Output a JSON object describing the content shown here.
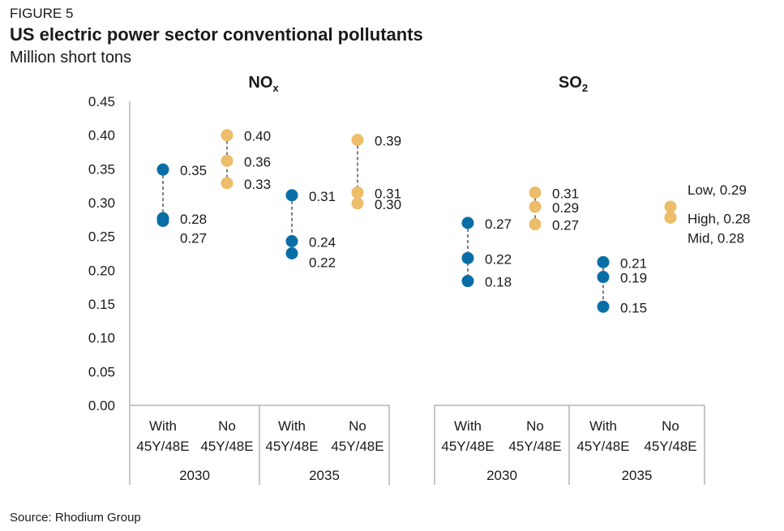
{
  "header": {
    "figure_label": "FIGURE 5",
    "title": "US electric power sector conventional pollutants",
    "subtitle": "Million short tons"
  },
  "footer": {
    "source": "Source: Rhodium Group"
  },
  "colors": {
    "with": "#0a6ea6",
    "no": "#ecbd6a",
    "axis": "#b3b3b3",
    "connector": "#555555"
  },
  "chart_data": [
    {
      "type": "scatter",
      "title": "NO",
      "title_subscript": "x",
      "ylim": [
        0,
        0.45
      ],
      "yticks": [
        "0.00",
        "0.05",
        "0.10",
        "0.15",
        "0.20",
        "0.25",
        "0.30",
        "0.35",
        "0.40",
        "0.45"
      ],
      "categories": [
        {
          "line1": "With",
          "line2": "45Y/48E",
          "year": "2030",
          "scenario": "with",
          "points": [
            {
              "value": 0.349,
              "label": "0.35"
            },
            {
              "value": 0.277,
              "label": "0.28"
            },
            {
              "value": 0.273,
              "label": "0.27"
            }
          ]
        },
        {
          "line1": "No",
          "line2": "45Y/48E",
          "year": "2030",
          "scenario": "no",
          "points": [
            {
              "value": 0.4,
              "label": "0.40"
            },
            {
              "value": 0.362,
              "label": "0.36"
            },
            {
              "value": 0.329,
              "label": "0.33"
            }
          ]
        },
        {
          "line1": "With",
          "line2": "45Y/48E",
          "year": "2035",
          "scenario": "with",
          "points": [
            {
              "value": 0.311,
              "label": "0.31"
            },
            {
              "value": 0.243,
              "label": "0.24"
            },
            {
              "value": 0.225,
              "label": "0.22"
            }
          ]
        },
        {
          "line1": "No",
          "line2": "45Y/48E",
          "year": "2035",
          "scenario": "no",
          "points": [
            {
              "value": 0.393,
              "label": "0.39"
            },
            {
              "value": 0.315,
              "label": "0.31"
            },
            {
              "value": 0.299,
              "label": "0.30"
            }
          ]
        }
      ],
      "years": [
        "2030",
        "2035"
      ]
    },
    {
      "type": "scatter",
      "title": "SO",
      "title_subscript": "2",
      "ylim": [
        0,
        0.45
      ],
      "categories": [
        {
          "line1": "With",
          "line2": "45Y/48E",
          "year": "2030",
          "scenario": "with",
          "points": [
            {
              "value": 0.27,
              "label": "0.27"
            },
            {
              "value": 0.218,
              "label": "0.22"
            },
            {
              "value": 0.184,
              "label": "0.18"
            }
          ]
        },
        {
          "line1": "No",
          "line2": "45Y/48E",
          "year": "2030",
          "scenario": "no",
          "points": [
            {
              "value": 0.315,
              "label": "0.31"
            },
            {
              "value": 0.294,
              "label": "0.29"
            },
            {
              "value": 0.268,
              "label": "0.27"
            }
          ]
        },
        {
          "line1": "With",
          "line2": "45Y/48E",
          "year": "2035",
          "scenario": "with",
          "points": [
            {
              "value": 0.212,
              "label": "0.21"
            },
            {
              "value": 0.19,
              "label": "0.19"
            },
            {
              "value": 0.146,
              "label": "0.15"
            }
          ]
        },
        {
          "line1": "No",
          "line2": "45Y/48E",
          "year": "2035",
          "scenario": "no",
          "points": [
            {
              "value": 0.294,
              "label": "Low, 0.29"
            },
            {
              "value": 0.278,
              "label": "High, 0.28"
            },
            {
              "value": 0.278,
              "label": "Mid, 0.28"
            }
          ]
        }
      ],
      "years": [
        "2030",
        "2035"
      ]
    }
  ]
}
